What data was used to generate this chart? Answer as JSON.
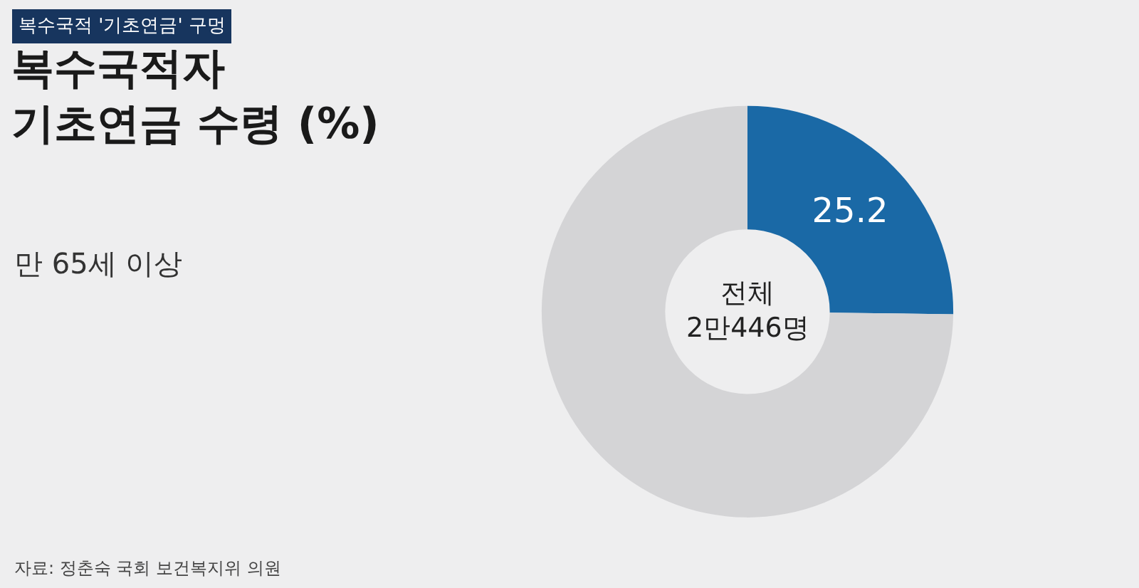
{
  "chart_data": {
    "type": "donut",
    "title": "복수국적자\n기초연금 수령 (%)",
    "subtitle": "만 65세 이상",
    "categories": [
      null,
      null
    ],
    "values": [
      25.2,
      74.8
    ],
    "colors": [
      "#1a69a6",
      "#d4d4d6"
    ],
    "value_labels": [
      "25.2",
      null
    ],
    "annotations": [
      "복수국적 '기초연금' 구멍",
      "전체\n2만446명",
      "자료: 정춘숙 국회 보건복지위 의원"
    ],
    "legend": false
  }
}
